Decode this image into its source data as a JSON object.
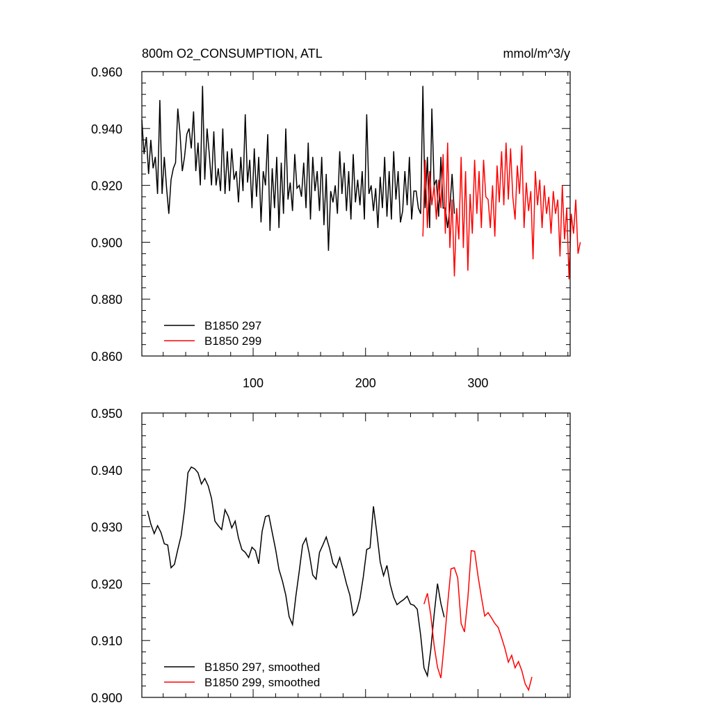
{
  "header": {
    "title": "800m O2_CONSUMPTION, ATL",
    "units": "mmol/m^3/y"
  },
  "colors": {
    "run_297": "#000000",
    "run_299": "#ff0000",
    "axis": "#000000",
    "background": "#ffffff"
  },
  "chart_data": [
    {
      "type": "line",
      "panel": "top",
      "title": "800m O2_CONSUMPTION, ATL",
      "units": "mmol/m^3/y",
      "xlabel": "",
      "ylabel": "",
      "xlim": [
        1,
        382
      ],
      "ylim": [
        0.86,
        0.96
      ],
      "x_ticks": [
        100,
        200,
        300
      ],
      "x_tick_labels": [
        "100",
        "200",
        "300"
      ],
      "y_ticks": [
        0.86,
        0.88,
        0.9,
        0.92,
        0.94,
        0.96
      ],
      "y_tick_labels": [
        "0.860",
        "0.880",
        "0.900",
        "0.920",
        "0.940",
        "0.960"
      ],
      "legend_position": "bottom-left",
      "legend_labels": [
        "B1850 297",
        "B1850 299"
      ],
      "series": [
        {
          "name": "B1850 297",
          "color": "#000000",
          "x_start": 1,
          "x_step": 2,
          "values": [
            0.943,
            0.931,
            0.937,
            0.924,
            0.936,
            0.926,
            0.93,
            0.917,
            0.95,
            0.917,
            0.93,
            0.919,
            0.91,
            0.922,
            0.926,
            0.928,
            0.947,
            0.938,
            0.925,
            0.93,
            0.938,
            0.94,
            0.933,
            0.946,
            0.925,
            0.935,
            0.92,
            0.955,
            0.922,
            0.94,
            0.931,
            0.92,
            0.939,
            0.92,
            0.926,
            0.918,
            0.94,
            0.917,
            0.932,
            0.918,
            0.933,
            0.922,
            0.925,
            0.914,
            0.93,
            0.918,
            0.945,
            0.921,
            0.929,
            0.912,
            0.933,
            0.916,
            0.93,
            0.907,
            0.925,
            0.92,
            0.938,
            0.904,
            0.926,
            0.912,
            0.93,
            0.905,
            0.928,
            0.91,
            0.94,
            0.915,
            0.921,
            0.911,
            0.931,
            0.919,
            0.92,
            0.916,
            0.928,
            0.912,
            0.935,
            0.908,
            0.93,
            0.918,
            0.925,
            0.911,
            0.93,
            0.906,
            0.924,
            0.897,
            0.918,
            0.914,
            0.92,
            0.91,
            0.932,
            0.917,
            0.928,
            0.911,
            0.925,
            0.908,
            0.931,
            0.914,
            0.922,
            0.913,
            0.925,
            0.908,
            0.945,
            0.917,
            0.92,
            0.911,
            0.919,
            0.905,
            0.923,
            0.912,
            0.93,
            0.909,
            0.925,
            0.908,
            0.932,
            0.915,
            0.925,
            0.907,
            0.911,
            0.925,
            0.913,
            0.93,
            0.908,
            0.918,
            0.918,
            0.912,
            0.91,
            0.955,
            0.912,
            0.93,
            0.905,
            0.947,
            0.92,
            0.922,
            0.909,
            0.93,
            0.912,
            0.912,
            0.905,
            0.912,
            0.924,
            0.91
          ],
          "x_start_2": 0
        },
        {
          "name": "B1850 299",
          "color": "#ff0000",
          "x_start": 251,
          "x_step": 2,
          "values": [
            0.902,
            0.929,
            0.905,
            0.925,
            0.913,
            0.92,
            0.908,
            0.922,
            0.912,
            0.931,
            0.903,
            0.935,
            0.898,
            0.915,
            0.888,
            0.912,
            0.901,
            0.93,
            0.898,
            0.925,
            0.89,
            0.917,
            0.903,
            0.929,
            0.91,
            0.925,
            0.905,
            0.929,
            0.916,
            0.915,
            0.905,
            0.92,
            0.902,
            0.927,
            0.914,
            0.932,
            0.913,
            0.935,
            0.915,
            0.933,
            0.916,
            0.908,
            0.927,
            0.917,
            0.934,
            0.905,
            0.921,
            0.911,
            0.918,
            0.894,
            0.925,
            0.913,
            0.922,
            0.905,
            0.92,
            0.91,
            0.916,
            0.903,
            0.918,
            0.91,
            0.915,
            0.895,
            0.92,
            0.901,
            0.912,
            0.887,
            0.91,
            0.903,
            0.915,
            0.896,
            0.9
          ]
        }
      ]
    },
    {
      "type": "line",
      "panel": "bottom",
      "title": "",
      "xlabel": "",
      "ylabel": "",
      "xlim": [
        1,
        382
      ],
      "ylim": [
        0.9,
        0.95
      ],
      "x_ticks": [
        100,
        200,
        300
      ],
      "y_ticks": [
        0.9,
        0.91,
        0.92,
        0.93,
        0.94,
        0.95
      ],
      "y_tick_labels": [
        "0.900",
        "0.910",
        "0.920",
        "0.930",
        "0.940",
        "0.950"
      ],
      "legend_position": "bottom-left",
      "legend_labels": [
        "B1850 297, smoothed",
        "B1850 299, smoothed"
      ],
      "series": [
        {
          "name": "B1850 297, smoothed",
          "color": "#000000",
          "x_start": 6,
          "x_step": 3,
          "values": [
            0.9328,
            0.9305,
            0.9288,
            0.9302,
            0.929,
            0.927,
            0.9268,
            0.9228,
            0.9234,
            0.926,
            0.9285,
            0.933,
            0.9395,
            0.9405,
            0.9402,
            0.9395,
            0.9375,
            0.9385,
            0.9372,
            0.935,
            0.931,
            0.9302,
            0.9295,
            0.933,
            0.9318,
            0.9298,
            0.931,
            0.928,
            0.926,
            0.9255,
            0.9246,
            0.9264,
            0.9258,
            0.9235,
            0.9292,
            0.9318,
            0.932,
            0.929,
            0.926,
            0.9225,
            0.9205,
            0.918,
            0.9142,
            0.9128,
            0.9178,
            0.9222,
            0.9268,
            0.928,
            0.9252,
            0.9215,
            0.9208,
            0.9255,
            0.9268,
            0.9282,
            0.9262,
            0.9236,
            0.9228,
            0.9246,
            0.9224,
            0.92,
            0.918,
            0.9144,
            0.9151,
            0.9174,
            0.9212,
            0.926,
            0.9263,
            0.9336,
            0.929,
            0.9238,
            0.9214,
            0.9232,
            0.9198,
            0.9176,
            0.9163,
            0.9168,
            0.9172,
            0.9178,
            0.9164,
            0.9162,
            0.9155,
            0.9109,
            0.9052,
            0.9038,
            0.9083,
            0.9146,
            0.92,
            0.9165,
            0.9141
          ]
        },
        {
          "name": "B1850 299, smoothed",
          "color": "#ff0000",
          "x_start": 252,
          "x_step": 3,
          "values": [
            0.9164,
            0.9183,
            0.9145,
            0.9091,
            0.9053,
            0.9034,
            0.9095,
            0.9164,
            0.9226,
            0.9228,
            0.921,
            0.913,
            0.9115,
            0.9175,
            0.9258,
            0.9257,
            0.9214,
            0.9177,
            0.9143,
            0.9149,
            0.914,
            0.913,
            0.9123,
            0.9105,
            0.9086,
            0.9062,
            0.9074,
            0.9052,
            0.9063,
            0.9047,
            0.9024,
            0.9013,
            0.9036
          ]
        }
      ]
    }
  ]
}
